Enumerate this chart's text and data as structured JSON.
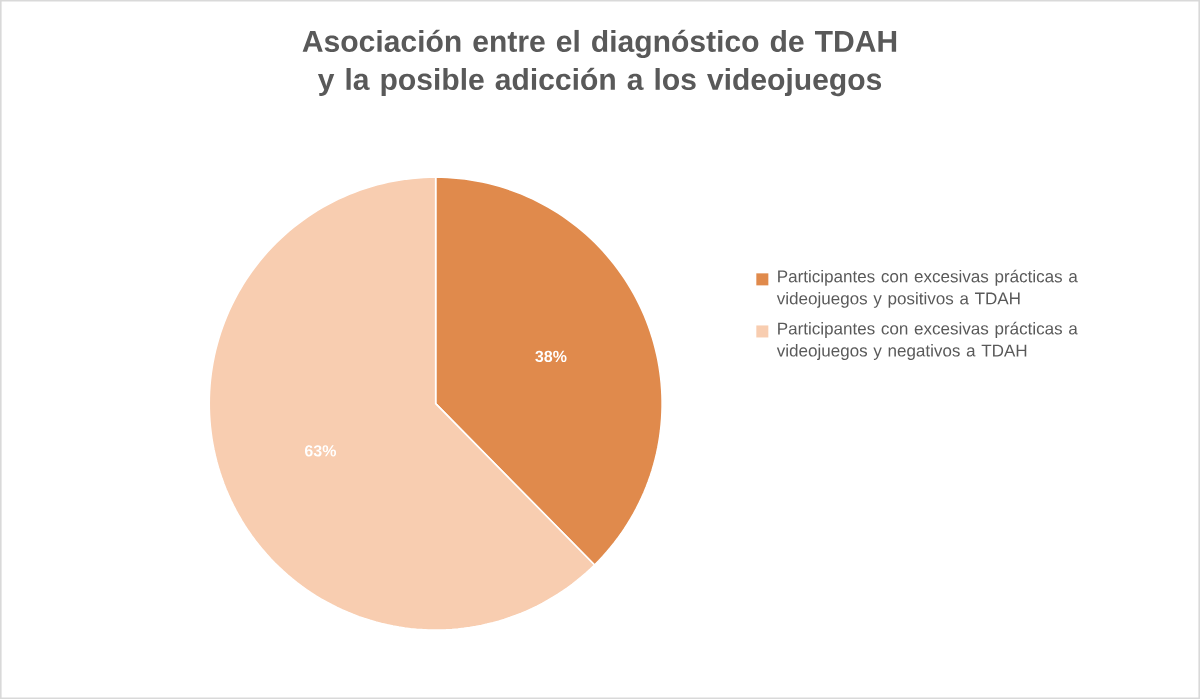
{
  "chart_data": {
    "type": "pie",
    "title": "Asociación entre el diagnóstico de TDAH y la posible adicción a los videojuegos",
    "categories": [
      "Participantes con excesivas prácticas a videojuegos y positivos a TDAH",
      "Participantes con excesivas prácticas a videojuegos y negativos a TDAH"
    ],
    "values": [
      38,
      63
    ],
    "value_labels": [
      "38%",
      "63%"
    ],
    "colors": [
      "#e08a4c",
      "#f8cdb0"
    ],
    "legend": "right"
  }
}
